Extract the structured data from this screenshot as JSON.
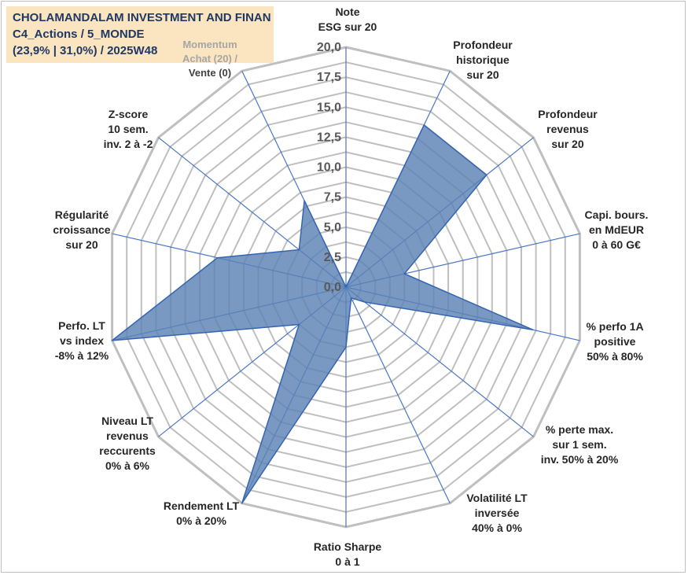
{
  "header": {
    "line1": "CHOLAMANDALAM INVESTMENT AND FINAN",
    "line2": "C4_Actions / 5_MONDE",
    "line3": "(23,9% | 31,0%) / 2025W48"
  },
  "colors": {
    "fill": "#5b82b5",
    "stroke": "#3465b0",
    "grid": "#bfbfbf",
    "spoke": "#4a76c4",
    "title_bg": "#fbe5c0",
    "title_text": "#1f3864",
    "label_text": "#262626"
  },
  "chart_data": {
    "type": "radar",
    "title": "CHOLAMANDALAM INVESTMENT AND FINAN",
    "rlim": [
      0,
      20
    ],
    "ticks": [
      "0,0",
      "2,5",
      "5,0",
      "7,5",
      "10,0",
      "12,5",
      "15,0",
      "17,5",
      "20,0"
    ],
    "tick_values": [
      0,
      2.5,
      5,
      7.5,
      10,
      12.5,
      15,
      17.5,
      20
    ],
    "grid": true,
    "axes": [
      {
        "name": "note-esg",
        "label": [
          "Note",
          "ESG sur 20"
        ],
        "value": 0
      },
      {
        "name": "profondeur-historique",
        "label": [
          "Profondeur",
          "historique",
          "sur 20"
        ],
        "value": 15
      },
      {
        "name": "profondeur-revenus",
        "label": [
          "Profondeur",
          "revenus",
          "sur 20"
        ],
        "value": 15
      },
      {
        "name": "capi-bours",
        "label": [
          "Capi. bours.",
          "en MdEUR",
          "0 à 60 G€"
        ],
        "value": 5
      },
      {
        "name": "perfo-1a",
        "label": [
          "% perfo 1A",
          "positive",
          "50% à 80%"
        ],
        "value": 16
      },
      {
        "name": "perte-max",
        "label": [
          "% perte max.",
          "sur 1 sem.",
          "inv. 50% à 20%"
        ],
        "value": 2
      },
      {
        "name": "volatilite-lt",
        "label": [
          "Volatilité LT",
          "inversée",
          "40% à 0%"
        ],
        "value": 1
      },
      {
        "name": "ratio-sharpe",
        "label": [
          "Ratio Sharpe",
          "0 à 1"
        ],
        "value": 5
      },
      {
        "name": "rendement-lt",
        "label": [
          "Rendement LT",
          "0% à 20%"
        ],
        "value": 20
      },
      {
        "name": "niveau-lt-revenus",
        "label": [
          "Niveau LT",
          "revenus",
          "reccurents",
          "0% à 6%"
        ],
        "value": 5
      },
      {
        "name": "perfo-lt-index",
        "label": [
          "Perfo. LT",
          "vs index",
          "-8% à 12%"
        ],
        "value": 20
      },
      {
        "name": "regularite-croissance",
        "label": [
          "Régularité",
          "croissance",
          "sur 20"
        ],
        "value": 11
      },
      {
        "name": "z-score",
        "label": [
          "Z-score",
          "10 sem.",
          "inv. 2 à -2"
        ],
        "value": 5
      },
      {
        "name": "momentum",
        "label": [
          "Momentum",
          "Achat (20) /",
          "Vente (0)"
        ],
        "value": 8
      }
    ]
  }
}
